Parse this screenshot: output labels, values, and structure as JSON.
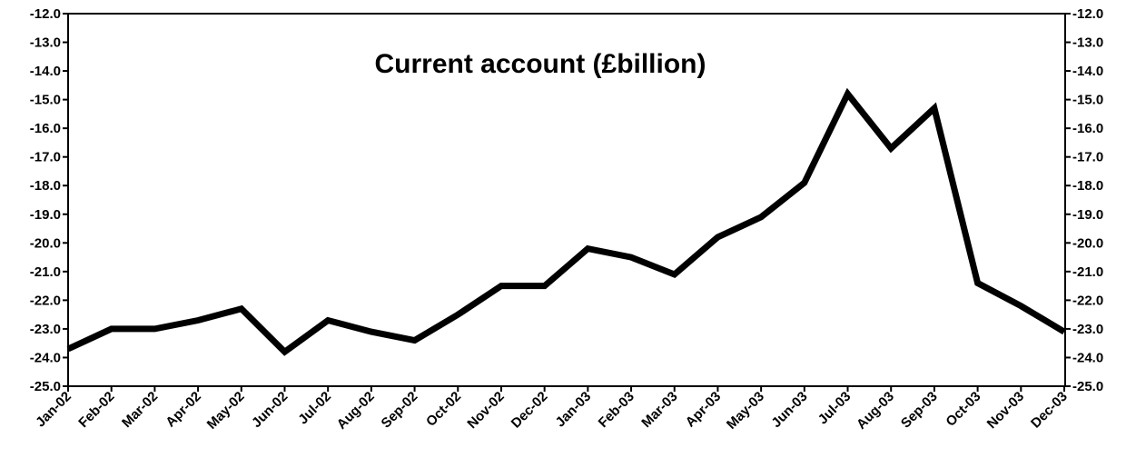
{
  "chart_data": {
    "type": "line",
    "title": "Current account (£billion)",
    "xlabel": "",
    "ylabel": "",
    "ylim": [
      -25.0,
      -12.0
    ],
    "y_ticks": [
      "-12.0",
      "-13.0",
      "-14.0",
      "-15.0",
      "-16.0",
      "-17.0",
      "-18.0",
      "-19.0",
      "-20.0",
      "-21.0",
      "-22.0",
      "-23.0",
      "-24.0",
      "-25.0"
    ],
    "y_axis_sides": [
      "left",
      "right"
    ],
    "grid": false,
    "legend": "none",
    "categories": [
      "Jan-02",
      "Feb-02",
      "Mar-02",
      "Apr-02",
      "May-02",
      "Jun-02",
      "Jul-02",
      "Aug-02",
      "Sep-02",
      "Oct-02",
      "Nov-02",
      "Dec-02",
      "Jan-03",
      "Feb-03",
      "Mar-03",
      "Apr-03",
      "May-03",
      "Jun-03",
      "Jul-03",
      "Aug-03",
      "Sep-03",
      "Oct-03",
      "Nov-03",
      "Dec-03"
    ],
    "series": [
      {
        "values": [
          -23.7,
          -23.0,
          -23.0,
          -22.7,
          -22.3,
          -23.8,
          -22.7,
          -23.1,
          -23.4,
          -22.5,
          -21.5,
          -21.5,
          -20.2,
          -20.5,
          -21.1,
          -19.8,
          -19.1,
          -17.9,
          -14.8,
          -16.7,
          -15.3,
          -21.4,
          -22.2,
          -23.1
        ],
        "color": "#000000"
      }
    ]
  }
}
